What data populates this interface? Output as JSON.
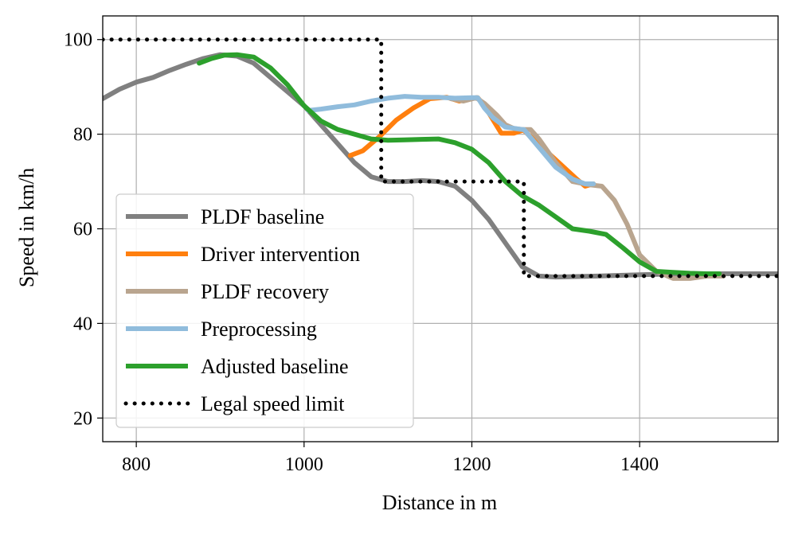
{
  "chart_data": {
    "type": "line",
    "title": "",
    "xlabel": "Distance in m",
    "ylabel": "Speed in km/h",
    "xlim": [
      760,
      1565
    ],
    "ylim": [
      15,
      105
    ],
    "xticks": [
      800,
      1000,
      1200,
      1400
    ],
    "yticks": [
      20,
      40,
      60,
      80,
      100
    ],
    "grid": true,
    "legend_position": "lower-left",
    "series": [
      {
        "name": "PLDF baseline",
        "color": "#808080",
        "style": "solid",
        "x": [
          760,
          780,
          800,
          820,
          840,
          860,
          880,
          900,
          920,
          940,
          960,
          980,
          1000,
          1020,
          1040,
          1060,
          1080,
          1100,
          1120,
          1140,
          1160,
          1180,
          1200,
          1220,
          1240,
          1260,
          1280,
          1300,
          1350,
          1400,
          1450,
          1500,
          1565
        ],
        "y": [
          87.5,
          89.5,
          91,
          92,
          93.5,
          94.8,
          96,
          96.8,
          96.5,
          95,
          92,
          89,
          86,
          82,
          78,
          74,
          71,
          70,
          70,
          70.2,
          70,
          69,
          66,
          62,
          57,
          52,
          50,
          49.8,
          50,
          50.3,
          50.5,
          50.5,
          50.5
        ]
      },
      {
        "name": "Driver intervention",
        "color": "#ff7f0e",
        "style": "solid",
        "x": [
          1055,
          1070,
          1090,
          1110,
          1130,
          1150,
          1170,
          1185,
          1200,
          1205,
          1207,
          1215,
          1235,
          1250,
          1260,
          1262,
          1325,
          1335,
          1345
        ],
        "y": [
          75.5,
          76.5,
          79.5,
          83,
          85.5,
          87.5,
          87.8,
          87,
          87.5,
          87.7,
          87.7,
          86,
          80.2,
          80.2,
          80.8,
          80.8,
          70.5,
          69,
          69.5
        ]
      },
      {
        "name": "PLDF recovery",
        "color": "#b9a58f",
        "style": "solid",
        "x": [
          1175,
          1190,
          1205,
          1215,
          1230,
          1240,
          1250,
          1260,
          1270,
          1280,
          1300,
          1320,
          1340,
          1355,
          1370,
          1385,
          1400,
          1420,
          1440,
          1460,
          1480,
          1500
        ],
        "y": [
          87.5,
          87,
          87.7,
          86.5,
          84,
          82,
          81.2,
          81,
          81,
          79,
          74,
          70,
          69.3,
          69,
          66,
          61,
          54.5,
          51,
          49.5,
          49.5,
          50,
          50
        ]
      },
      {
        "name": "Preprocessing",
        "color": "#90bcdc",
        "style": "solid",
        "x": [
          1005,
          1020,
          1040,
          1060,
          1080,
          1100,
          1120,
          1140,
          1160,
          1180,
          1200,
          1207,
          1215,
          1225,
          1240,
          1260,
          1262,
          1300,
          1320,
          1335,
          1345
        ],
        "y": [
          85,
          85.3,
          85.8,
          86.2,
          87,
          87.6,
          88,
          87.8,
          87.8,
          87.6,
          87.7,
          87.7,
          85.5,
          83.5,
          81.5,
          81,
          81,
          73,
          70.5,
          69.5,
          69.5
        ]
      },
      {
        "name": "Adjusted baseline",
        "color": "#2ca02c",
        "style": "solid",
        "x": [
          875,
          890,
          905,
          920,
          940,
          960,
          980,
          1000,
          1020,
          1040,
          1060,
          1080,
          1100,
          1120,
          1140,
          1160,
          1180,
          1200,
          1220,
          1240,
          1260,
          1280,
          1300,
          1320,
          1340,
          1360,
          1380,
          1400,
          1420,
          1440,
          1460,
          1480,
          1495
        ],
        "y": [
          95,
          96,
          96.7,
          96.8,
          96.3,
          94,
          90.5,
          86,
          82.8,
          81,
          80,
          79,
          78.7,
          78.8,
          78.9,
          79,
          78.2,
          76.8,
          74,
          70,
          67,
          65,
          62.5,
          60,
          59.5,
          58.8,
          56,
          53,
          51,
          50.8,
          50.6,
          50.5,
          50.5
        ]
      },
      {
        "name": "Legal speed limit",
        "color": "#000000",
        "style": "dotted",
        "x": [
          760,
          1092,
          1092,
          1262,
          1262,
          1565
        ],
        "y": [
          100,
          100,
          70,
          70,
          50,
          50
        ]
      }
    ]
  }
}
